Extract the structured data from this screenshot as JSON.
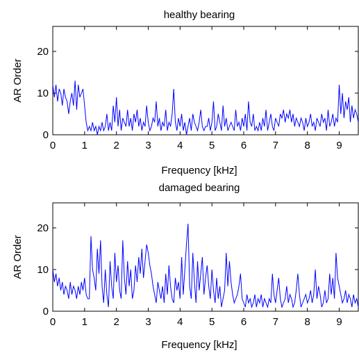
{
  "chart_data": [
    {
      "type": "line",
      "title": "healthy bearing",
      "xlabel": "Frequency [kHz]",
      "ylabel": "AR Order",
      "xlim": [
        0,
        9.6
      ],
      "ylim": [
        0,
        26
      ],
      "xticks": [
        0,
        1,
        2,
        3,
        4,
        5,
        6,
        7,
        8,
        9
      ],
      "yticks": [
        0,
        10,
        20
      ],
      "grid": false,
      "series": [
        {
          "color": "#0000ff",
          "x": [
            0.0,
            0.05,
            0.1,
            0.15,
            0.2,
            0.25,
            0.3,
            0.35,
            0.4,
            0.45,
            0.5,
            0.55,
            0.6,
            0.65,
            0.7,
            0.75,
            0.8,
            0.85,
            0.9,
            0.95,
            1.0,
            1.05,
            1.1,
            1.15,
            1.2,
            1.25,
            1.3,
            1.35,
            1.4,
            1.45,
            1.5,
            1.55,
            1.6,
            1.65,
            1.7,
            1.75,
            1.8,
            1.85,
            1.9,
            1.95,
            2.0,
            2.05,
            2.1,
            2.15,
            2.2,
            2.25,
            2.3,
            2.35,
            2.4,
            2.45,
            2.5,
            2.55,
            2.6,
            2.65,
            2.7,
            2.75,
            2.8,
            2.85,
            2.9,
            2.95,
            3.0,
            3.05,
            3.1,
            3.15,
            3.2,
            3.25,
            3.3,
            3.35,
            3.4,
            3.45,
            3.5,
            3.55,
            3.6,
            3.65,
            3.7,
            3.75,
            3.8,
            3.85,
            3.9,
            3.95,
            4.0,
            4.05,
            4.1,
            4.15,
            4.2,
            4.25,
            4.3,
            4.35,
            4.4,
            4.45,
            4.5,
            4.55,
            4.6,
            4.65,
            4.7,
            4.75,
            4.8,
            4.85,
            4.9,
            4.95,
            5.0,
            5.05,
            5.1,
            5.15,
            5.2,
            5.25,
            5.3,
            5.35,
            5.4,
            5.45,
            5.5,
            5.55,
            5.6,
            5.65,
            5.7,
            5.75,
            5.8,
            5.85,
            5.9,
            5.95,
            6.0,
            6.05,
            6.1,
            6.15,
            6.2,
            6.25,
            6.3,
            6.35,
            6.4,
            6.45,
            6.5,
            6.55,
            6.6,
            6.65,
            6.7,
            6.75,
            6.8,
            6.85,
            6.9,
            6.95,
            7.0,
            7.05,
            7.1,
            7.15,
            7.2,
            7.25,
            7.3,
            7.35,
            7.4,
            7.45,
            7.5,
            7.55,
            7.6,
            7.65,
            7.7,
            7.75,
            7.8,
            7.85,
            7.9,
            7.95,
            8.0,
            8.05,
            8.1,
            8.15,
            8.2,
            8.25,
            8.3,
            8.35,
            8.4,
            8.45,
            8.5,
            8.55,
            8.6,
            8.65,
            8.7,
            8.75,
            8.8,
            8.85,
            8.9,
            8.95,
            9.0,
            9.05,
            9.1,
            9.15,
            9.2,
            9.25,
            9.3,
            9.35,
            9.4,
            9.45,
            9.5,
            9.55,
            9.6
          ],
          "y": [
            12,
            9,
            12,
            8,
            11,
            10,
            7,
            11,
            9,
            8,
            5,
            8,
            10,
            7,
            13,
            6,
            12,
            9,
            10,
            11,
            7,
            3,
            1,
            2,
            1,
            3,
            1,
            2,
            0,
            2,
            1,
            3,
            1,
            2,
            5,
            1,
            3,
            1,
            7,
            3,
            9,
            2,
            6,
            1,
            4,
            3,
            2,
            6,
            2,
            4,
            1,
            5,
            3,
            6,
            2,
            4,
            1,
            3,
            2,
            7,
            3,
            1,
            2,
            4,
            3,
            8,
            2,
            4,
            1,
            3,
            2,
            6,
            1,
            3,
            2,
            5,
            11,
            3,
            1,
            4,
            2,
            5,
            1,
            3,
            0,
            2,
            4,
            1,
            5,
            3,
            2,
            1,
            3,
            6,
            2,
            1,
            2,
            2,
            4,
            1,
            3,
            8,
            1,
            2,
            5,
            3,
            1,
            7,
            2,
            4,
            1,
            2,
            3,
            2,
            1,
            6,
            2,
            3,
            1,
            4,
            2,
            5,
            1,
            8,
            3,
            2,
            5,
            1,
            2,
            1,
            3,
            1,
            4,
            2,
            6,
            1,
            3,
            5,
            2,
            1,
            4,
            3,
            2,
            5,
            4,
            6,
            3,
            5,
            4,
            6,
            3,
            5,
            2,
            4,
            3,
            2,
            4,
            3,
            1,
            4,
            2,
            3,
            5,
            2,
            3,
            1,
            4,
            3,
            2,
            5,
            3,
            4,
            1,
            6,
            2,
            3,
            5,
            2,
            4,
            3,
            12,
            5,
            10,
            4,
            8,
            6,
            9,
            3,
            7,
            4,
            6,
            5,
            3
          ]
        }
      ]
    },
    {
      "type": "line",
      "title": "damaged bearing",
      "xlabel": "Frequency [kHz]",
      "ylabel": "AR Order",
      "xlim": [
        0,
        9.6
      ],
      "ylim": [
        0,
        26
      ],
      "xticks": [
        0,
        1,
        2,
        3,
        4,
        5,
        6,
        7,
        8,
        9
      ],
      "yticks": [
        0,
        10,
        20
      ],
      "grid": false,
      "series": [
        {
          "color": "#0000ff",
          "x": [
            0.0,
            0.05,
            0.1,
            0.15,
            0.2,
            0.25,
            0.3,
            0.35,
            0.4,
            0.45,
            0.5,
            0.55,
            0.6,
            0.65,
            0.7,
            0.75,
            0.8,
            0.85,
            0.9,
            0.95,
            1.0,
            1.05,
            1.1,
            1.15,
            1.2,
            1.25,
            1.3,
            1.35,
            1.4,
            1.45,
            1.5,
            1.55,
            1.6,
            1.65,
            1.7,
            1.75,
            1.8,
            1.85,
            1.9,
            1.95,
            2.0,
            2.05,
            2.1,
            2.15,
            2.2,
            2.25,
            2.3,
            2.35,
            2.4,
            2.45,
            2.5,
            2.55,
            2.6,
            2.65,
            2.7,
            2.75,
            2.8,
            2.85,
            2.9,
            2.95,
            3.0,
            3.05,
            3.1,
            3.15,
            3.2,
            3.25,
            3.3,
            3.35,
            3.4,
            3.45,
            3.5,
            3.55,
            3.6,
            3.65,
            3.7,
            3.75,
            3.8,
            3.85,
            3.9,
            3.95,
            4.0,
            4.05,
            4.1,
            4.15,
            4.2,
            4.25,
            4.3,
            4.35,
            4.4,
            4.45,
            4.5,
            4.55,
            4.6,
            4.65,
            4.7,
            4.75,
            4.8,
            4.85,
            4.9,
            4.95,
            5.0,
            5.05,
            5.1,
            5.15,
            5.2,
            5.25,
            5.3,
            5.35,
            5.4,
            5.45,
            5.5,
            5.55,
            5.6,
            5.65,
            5.7,
            5.75,
            5.8,
            5.85,
            5.9,
            5.95,
            6.0,
            6.05,
            6.1,
            6.15,
            6.2,
            6.25,
            6.3,
            6.35,
            6.4,
            6.45,
            6.5,
            6.55,
            6.6,
            6.65,
            6.7,
            6.75,
            6.8,
            6.85,
            6.9,
            6.95,
            7.0,
            7.05,
            7.1,
            7.15,
            7.2,
            7.25,
            7.3,
            7.35,
            7.4,
            7.45,
            7.5,
            7.55,
            7.6,
            7.65,
            7.7,
            7.75,
            7.8,
            7.85,
            7.9,
            7.95,
            8.0,
            8.05,
            8.1,
            8.15,
            8.2,
            8.25,
            8.3,
            8.35,
            8.4,
            8.45,
            8.5,
            8.55,
            8.6,
            8.65,
            8.7,
            8.75,
            8.8,
            8.85,
            8.9,
            8.95,
            9.0,
            9.05,
            9.1,
            9.15,
            9.2,
            9.25,
            9.3,
            9.35,
            9.4,
            9.45,
            9.5,
            9.55,
            9.6
          ],
          "y": [
            10,
            7,
            9,
            6,
            8,
            5,
            7,
            4,
            6,
            5,
            3,
            7,
            4,
            6,
            5,
            3,
            6,
            4,
            7,
            5,
            8,
            4,
            3,
            3,
            18,
            10,
            8,
            5,
            15,
            9,
            17,
            6,
            2,
            10,
            4,
            1,
            12,
            6,
            3,
            14,
            7,
            11,
            5,
            3,
            17,
            8,
            4,
            12,
            6,
            10,
            3,
            5,
            11,
            7,
            13,
            9,
            15,
            8,
            12,
            16,
            14,
            11,
            9,
            6,
            4,
            2,
            7,
            5,
            3,
            6,
            2,
            9,
            4,
            11,
            6,
            3,
            2,
            8,
            5,
            7,
            3,
            13,
            4,
            10,
            16,
            21,
            6,
            3,
            14,
            7,
            2,
            12,
            5,
            9,
            13,
            4,
            8,
            11,
            6,
            3,
            10,
            5,
            2,
            8,
            3,
            6,
            1,
            3,
            5,
            14,
            6,
            12,
            7,
            4,
            2,
            3,
            4,
            6,
            9,
            3,
            2,
            1,
            4,
            2,
            3,
            1,
            2,
            4,
            1,
            3,
            2,
            4,
            1,
            3,
            2,
            1,
            3,
            2,
            9,
            4,
            2,
            5,
            8,
            3,
            1,
            2,
            3,
            6,
            2,
            4,
            3,
            1,
            2,
            5,
            9,
            4,
            1,
            2,
            3,
            4,
            2,
            3,
            5,
            2,
            4,
            10,
            3,
            6,
            4,
            1,
            2,
            5,
            2,
            3,
            9,
            4,
            8,
            3,
            14,
            8,
            6,
            4,
            2,
            3,
            5,
            2,
            4,
            3,
            1,
            4,
            2,
            3,
            1
          ]
        }
      ]
    }
  ]
}
